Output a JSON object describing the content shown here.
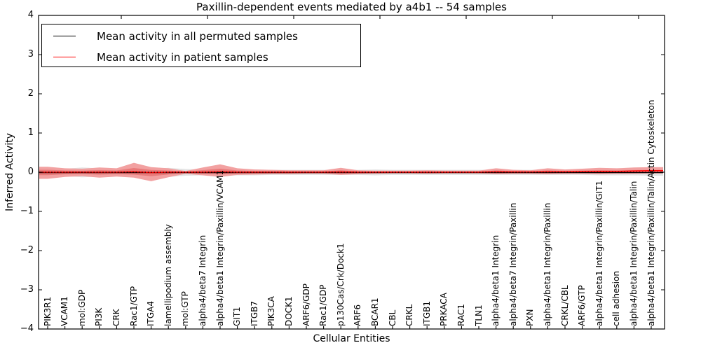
{
  "title": "Paxillin-dependent events mediated by a4b1 -- 54 samples",
  "legend": {
    "items": [
      {
        "label": "Mean activity in all permuted samples",
        "color": "#000000"
      },
      {
        "label": "Mean activity in patient samples",
        "color": "#ff0000"
      }
    ]
  },
  "colors": {
    "permuted_line": "#000000",
    "patient_line": "#ff0000",
    "permuted_band": "#e3e3e3",
    "patient_band_outer": "#f2a1a1",
    "patient_band_inner": "#e97a7a",
    "zero_line": "#000000",
    "axis": "#000000"
  },
  "chart_data": {
    "type": "line",
    "title": "Paxillin-dependent events mediated by a4b1 -- 54 samples",
    "xlabel": "Cellular Entities",
    "ylabel": "Inferred Activity",
    "ylim": [
      -4,
      4
    ],
    "ytick_labels": [
      "4",
      "3",
      "2",
      "1",
      "0",
      "−1",
      "−2",
      "−3",
      "−4"
    ],
    "ytick_values": [
      4,
      3,
      2,
      1,
      0,
      -1,
      -2,
      -3,
      -4
    ],
    "grid": false,
    "legend_position": "upper left",
    "zero_line": {
      "y": 0,
      "style": "dotted",
      "color": "#000000"
    },
    "categories": [
      "PIK3R1",
      "VCAM1",
      "mol:GDP",
      "PI3K",
      "CRK",
      "Rac1/GTP",
      "ITGA4",
      "lamellipodium assembly",
      "mol:GTP",
      "alpha4/beta7 Integrin",
      "alpha4/beta1 Integrin/Paxillin/VCAM1",
      "GIT1",
      "ITGB7",
      "PIK3CA",
      "DOCK1",
      "ARF6/GDP",
      "Rac1/GDP",
      "p130Cas/Crk/Dock1",
      "ARF6",
      "BCAR1",
      "CBL",
      "CRKL",
      "ITGB1",
      "PRKACA",
      "RAC1",
      "TLN1",
      "alpha4/beta1 Integrin",
      "alpha4/beta7 Integrin/Paxillin",
      "PXN",
      "alpha4/beta1 Integrin/Paxillin",
      "CRKL/CBL",
      "ARF6/GTP",
      "alpha4/beta1 Integrin/Paxillin/GIT1",
      "cell adhesion",
      "alpha4/beta1 Integrin/Paxillin/Talin",
      "alpha4/beta1 Integrin/Paxillin/Talin/Actin Cytoskeleton"
    ],
    "series": [
      {
        "name": "Mean activity in all permuted samples",
        "color": "#000000",
        "values": [
          -0.01,
          -0.01,
          -0.01,
          -0.01,
          -0.01,
          -0.01,
          -0.01,
          -0.01,
          -0.01,
          -0.01,
          -0.01,
          -0.01,
          -0.01,
          -0.01,
          -0.01,
          -0.01,
          -0.01,
          -0.01,
          -0.01,
          -0.01,
          -0.01,
          -0.01,
          -0.01,
          -0.01,
          -0.01,
          -0.01,
          -0.01,
          -0.01,
          -0.01,
          -0.01,
          -0.01,
          -0.01,
          -0.01,
          -0.01,
          -0.01,
          -0.01
        ],
        "band_upper": [
          0.1,
          0.09,
          0.12,
          0.1,
          0.09,
          0.08,
          0.09,
          0.11,
          0.08,
          0.07,
          0.08,
          0.07,
          0.07,
          0.06,
          0.06,
          0.06,
          0.06,
          0.06,
          0.06,
          0.07,
          0.06,
          0.06,
          0.06,
          0.06,
          0.06,
          0.06,
          0.06,
          0.06,
          0.06,
          0.06,
          0.06,
          0.06,
          0.07,
          0.07,
          0.07,
          0.08
        ],
        "band_lower": [
          -0.12,
          -0.1,
          -0.13,
          -0.11,
          -0.1,
          -0.09,
          -0.1,
          -0.12,
          -0.09,
          -0.08,
          -0.09,
          -0.08,
          -0.08,
          -0.07,
          -0.07,
          -0.07,
          -0.07,
          -0.07,
          -0.07,
          -0.08,
          -0.07,
          -0.07,
          -0.07,
          -0.07,
          -0.07,
          -0.07,
          -0.07,
          -0.07,
          -0.07,
          -0.07,
          -0.07,
          -0.07,
          -0.08,
          -0.08,
          -0.08,
          -0.09
        ]
      },
      {
        "name": "Mean activity in patient samples",
        "color": "#ff0000",
        "values": [
          0,
          0,
          0,
          0,
          0,
          0.01,
          -0.01,
          0,
          0,
          0,
          0.01,
          0,
          0,
          0,
          0,
          0,
          0,
          0.005,
          0,
          0,
          0,
          0,
          0,
          0,
          0,
          0,
          0.01,
          0.005,
          0.005,
          0.01,
          0.01,
          0.015,
          0.02,
          0.02,
          0.03,
          0.04
        ],
        "band_upper": [
          0.14,
          0.1,
          0.09,
          0.12,
          0.1,
          0.24,
          0.13,
          0.1,
          0.03,
          0.12,
          0.2,
          0.1,
          0.07,
          0.06,
          0.05,
          0.05,
          0.05,
          0.11,
          0.05,
          0.04,
          0.04,
          0.04,
          0.05,
          0.04,
          0.04,
          0.04,
          0.1,
          0.06,
          0.05,
          0.1,
          0.07,
          0.09,
          0.11,
          0.1,
          0.12,
          0.13
        ],
        "band_lower": [
          -0.17,
          -0.12,
          -0.1,
          -0.14,
          -0.11,
          -0.14,
          -0.23,
          -0.13,
          -0.04,
          -0.08,
          -0.12,
          -0.07,
          -0.06,
          -0.05,
          -0.05,
          -0.04,
          -0.04,
          -0.07,
          -0.05,
          -0.04,
          -0.03,
          -0.03,
          -0.04,
          -0.03,
          -0.03,
          -0.03,
          -0.05,
          -0.04,
          -0.04,
          -0.05,
          -0.04,
          -0.04,
          -0.05,
          -0.04,
          -0.04,
          -0.03
        ],
        "inner_band_scale": 0.45
      }
    ]
  }
}
